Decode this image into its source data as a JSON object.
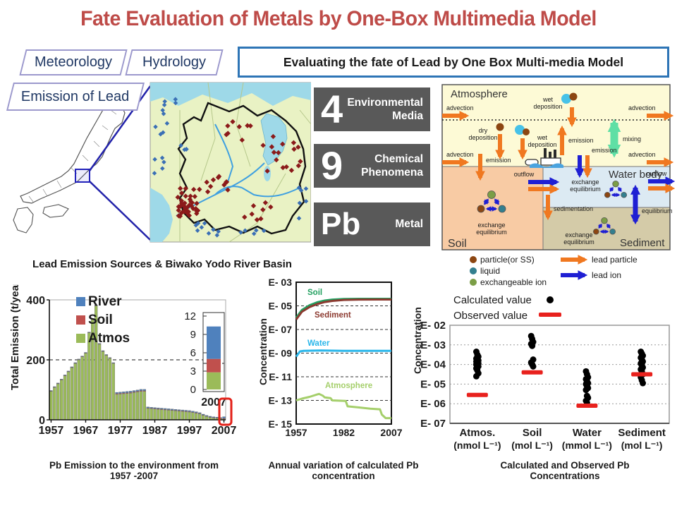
{
  "slide": {
    "title": "Fate Evaluation of Metals by One-Box Multimedia Model",
    "header_box": "Evaluating  the fate of Lead by One Box Multi-media Model",
    "tags": [
      "Meteorology",
      "Hydrology",
      "Emission of Lead"
    ],
    "map_caption": "Lead Emission Sources & Biwako Yodo River Basin",
    "captions": [
      "Pb Emission to the environment from\n1957 -2007",
      "Annual variation of calculated Pb\nconcentration",
      "Calculated and Observed Pb\nConcentrations"
    ]
  },
  "stat_boxes": [
    {
      "value": "4",
      "label": "Environmental\nMedia"
    },
    {
      "value": "9",
      "label": "Chemical\nPhenomena"
    },
    {
      "value": "Pb",
      "label": "Metal"
    }
  ],
  "diagram": {
    "compartments": {
      "atmosphere": "Atmosphere",
      "soil": "Soil",
      "water": "Water body",
      "sediment": "Sediment"
    },
    "labels": {
      "advection": "advection",
      "wet": "wet",
      "dry": "dry",
      "deposition": "deposition",
      "mixing": "mixing",
      "emission": "emission",
      "outflow": "outflow",
      "exchange": "exchange",
      "equilibrium": "equilibrium",
      "sedimentation": "sedimentation"
    },
    "legend": {
      "particle": "particle(or SS)",
      "liquid": "liquid",
      "ion": "exchangeable ion",
      "lead_particle": "lead particle",
      "lead_ion": "lead ion"
    }
  },
  "colors": {
    "title": "#BE4B48",
    "river": "#4F81BD",
    "soil_bar": "#C0504D",
    "atmos_bar": "#9BBB59",
    "soil_line": "#22A060",
    "sediment_line": "#8C3A30",
    "water_line": "#29B6EA",
    "atmosphere_line": "#A5CF6B",
    "calculated": "#000000",
    "observed": "#E8211D",
    "lead_particle": "#F07820",
    "lead_ion": "#1F1FD3",
    "mixing_green": "#5FDFA5",
    "particle_brown": "#8C4612",
    "liquid_teal": "#337F8F",
    "ion_green": "#7B9E46",
    "highlight_red": "#E32119"
  },
  "chart_data": [
    {
      "type": "bar",
      "title": "Pb Emission to the environment from 1957-2007",
      "ylabel": "Total Emission (t/year)",
      "ylim": [
        0,
        400
      ],
      "yticks": [
        0,
        200,
        400
      ],
      "xticks": [
        1957,
        1967,
        1977,
        1987,
        1997,
        2007
      ],
      "years_start": 1957,
      "years_end": 2007,
      "legend": [
        "River",
        "Soil",
        "Atmos"
      ],
      "series": [
        {
          "name": "Atmos",
          "values": [
            95,
            108,
            120,
            133,
            147,
            160,
            174,
            188,
            200,
            210,
            222,
            290,
            335,
            380,
            252,
            228,
            215,
            205,
            188,
            85,
            86,
            87,
            88,
            89,
            91,
            93,
            95,
            95,
            38,
            37,
            36,
            35,
            34,
            33,
            32,
            31,
            30,
            29,
            28,
            27,
            26,
            24,
            22,
            20,
            15,
            11,
            8,
            6,
            5,
            4,
            2.8
          ]
        },
        {
          "name": "Soil",
          "values": [
            1.2,
            1.2,
            1.2,
            1.2,
            1.2,
            1.2,
            1.2,
            1.2,
            1.2,
            1.2,
            1.2,
            1.2,
            1.2,
            1.2,
            1.2,
            1.2,
            1.2,
            1.2,
            1.2,
            2.5,
            2.5,
            2.5,
            2.5,
            2.5,
            2.5,
            2.5,
            2.5,
            2.5,
            1.8,
            1.8,
            1.8,
            1.8,
            1.8,
            1.8,
            1.8,
            1.8,
            1.8,
            1.8,
            1.8,
            1.8,
            1.8,
            1.8,
            1.8,
            1.4,
            1.4,
            1.4,
            1.4,
            1.4,
            1.4,
            1.4,
            2.2
          ]
        },
        {
          "name": "River",
          "values": [
            1.5,
            1.5,
            1.5,
            1.5,
            1.5,
            1.5,
            1.5,
            1.5,
            1.5,
            1.5,
            1.5,
            1.5,
            1.5,
            1.5,
            1.5,
            1.5,
            1.5,
            1.5,
            1.5,
            4,
            4,
            4,
            4,
            4,
            4,
            4,
            4,
            4,
            3,
            3,
            3,
            3,
            3,
            3,
            3,
            3,
            3,
            3,
            3,
            3,
            3,
            3,
            3,
            2.4,
            2.4,
            2.4,
            2.4,
            2.4,
            2.4,
            2.4,
            5.3
          ]
        }
      ],
      "gridline_at": 200,
      "highlight_year": "2007",
      "inset": {
        "year_label": "2007",
        "yticks": [
          0,
          3,
          6,
          9,
          12
        ],
        "atmos": 2.8,
        "soil": 2.2,
        "river": 5.3
      }
    },
    {
      "type": "line",
      "title": "Annual variation of calculated Pb concentration",
      "ylabel": "Concentration",
      "yticks": [
        "E- 03",
        "E- 05",
        "E- 07",
        "E- 09",
        "E- 11",
        "E- 13",
        "E- 15"
      ],
      "ytick_exponents": [
        -3,
        -5,
        -7,
        -9,
        -11,
        -13,
        -15
      ],
      "xticks": [
        1957,
        1982,
        2007
      ],
      "series": [
        {
          "name": "Soil",
          "color_key": "soil_line",
          "x": [
            1957,
            1960,
            1964,
            1968,
            1972,
            1976,
            1982,
            1990,
            2000,
            2007
          ],
          "exp": [
            -6.0,
            -5.35,
            -4.95,
            -4.7,
            -4.55,
            -4.47,
            -4.42,
            -4.4,
            -4.4,
            -4.4
          ]
        },
        {
          "name": "Sediment",
          "color_key": "sediment_line",
          "x": [
            1957,
            1960,
            1964,
            1968,
            1972,
            1976,
            1982,
            1990,
            2000,
            2007
          ],
          "exp": [
            -6.15,
            -5.5,
            -5.1,
            -4.85,
            -4.68,
            -4.58,
            -4.5,
            -4.47,
            -4.46,
            -4.46
          ]
        },
        {
          "name": "Water",
          "color_key": "water_line",
          "x": [
            1957,
            1959,
            1961,
            1970,
            1982,
            1995,
            2007
          ],
          "exp": [
            -9.3,
            -8.85,
            -8.8,
            -8.78,
            -8.8,
            -8.8,
            -8.8
          ]
        },
        {
          "name": "Atmosphere",
          "color_key": "atmosphere_line",
          "x": [
            1957,
            1960,
            1964,
            1968,
            1969,
            1971,
            1972,
            1975,
            1976,
            1983,
            1984,
            1990,
            1996,
            2001,
            2002,
            2004,
            2007
          ],
          "exp": [
            -13.0,
            -12.85,
            -12.7,
            -12.5,
            -12.45,
            -12.6,
            -12.75,
            -12.8,
            -13.0,
            -13.05,
            -13.5,
            -13.6,
            -13.7,
            -13.75,
            -14.2,
            -14.5,
            -14.5
          ]
        }
      ]
    },
    {
      "type": "scatter",
      "title": "Calculated and Observed Pb Concentrations",
      "ylabel": "Concentration",
      "yticks": [
        "E- 02",
        "E- 03",
        "E- 04",
        "E- 05",
        "E- 06",
        "E- 07"
      ],
      "ytick_exponents": [
        -2,
        -3,
        -4,
        -5,
        -6,
        -7
      ],
      "legend": [
        "Calculated value",
        "Observed value"
      ],
      "categories": [
        {
          "label": "Atmos.",
          "unit": "(nmol L⁻¹)",
          "calculated": [
            -3.35,
            -3.5,
            -3.6,
            -3.7,
            -3.75,
            -3.8,
            -3.85,
            -3.9,
            -3.95,
            -4.0,
            -4.05,
            -4.1,
            -4.2,
            -4.3,
            -4.45,
            -4.6
          ],
          "observed": -5.55
        },
        {
          "label": "Soil",
          "unit": "(mol L⁻¹)",
          "calculated": [
            -2.55,
            -2.7,
            -2.85,
            -2.95,
            -3.05,
            -3.75,
            -3.9,
            -4.0,
            -4.1
          ],
          "observed": -4.4
        },
        {
          "label": "Water",
          "unit": "(mmol L⁻¹)",
          "calculated": [
            -4.35,
            -4.5,
            -4.65,
            -4.75,
            -4.85,
            -4.95,
            -5.0,
            -5.1,
            -5.2,
            -5.3,
            -5.6,
            -5.7,
            -5.85,
            -5.95
          ],
          "observed": -6.1
        },
        {
          "label": "Sediment",
          "unit": "(mol L⁻¹)",
          "calculated": [
            -3.35,
            -3.45,
            -3.55,
            -3.65,
            -3.75,
            -3.85,
            -3.95,
            -4.05,
            -4.15,
            -4.25,
            -4.35,
            -4.5,
            -4.65,
            -4.8,
            -4.95
          ],
          "observed": -4.5
        }
      ]
    }
  ]
}
